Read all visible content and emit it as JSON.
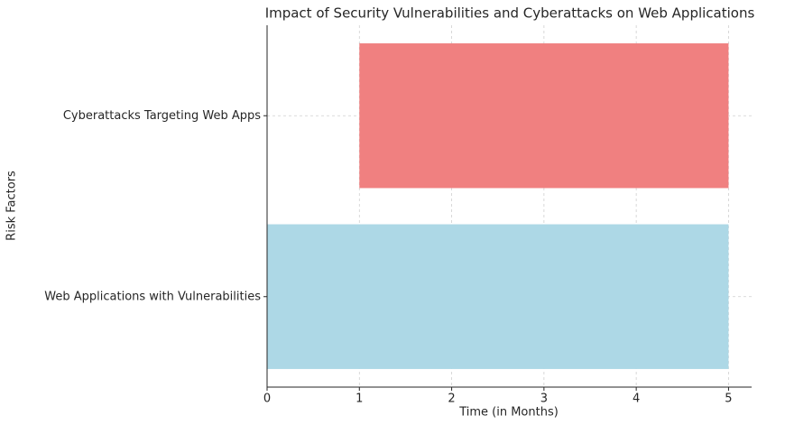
{
  "chart_data": {
    "type": "bar",
    "orientation": "horizontal",
    "title": "Impact of Security Vulnerabilities and Cyberattacks on Web Applications",
    "xlabel": "Time (in Months)",
    "ylabel": "Risk Factors",
    "categories": [
      "Web Applications with Vulnerabilities",
      "Cyberattacks Targeting Web Apps"
    ],
    "starts": [
      0,
      1
    ],
    "ends": [
      5,
      5
    ],
    "colors": [
      "#add8e6",
      "#f08080"
    ],
    "xlim": [
      0,
      5.25
    ],
    "xticks": [
      0,
      1,
      2,
      3,
      4,
      5
    ],
    "grid": true
  }
}
